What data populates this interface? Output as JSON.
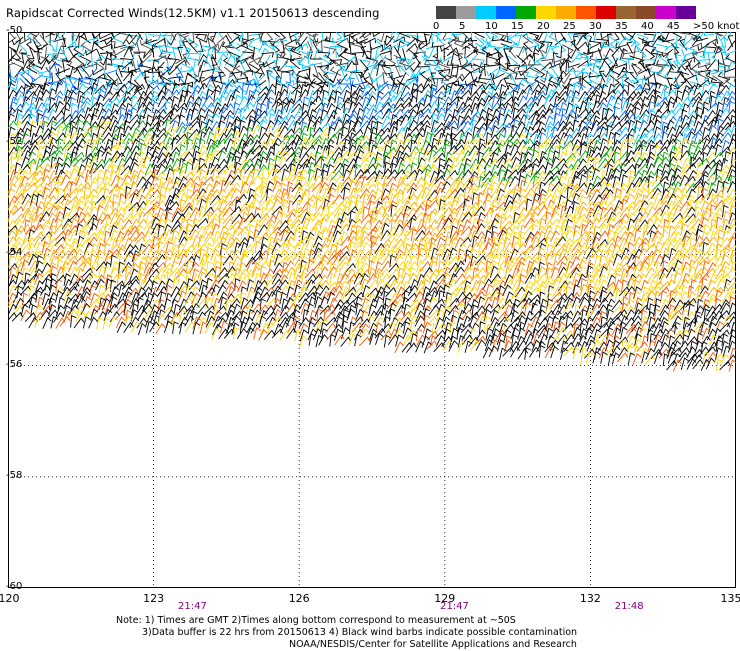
{
  "title": "Rapidscat Corrected Winds(12.5KM) v1.1 20150613 descending",
  "legend": {
    "labels": [
      "0",
      "5",
      "10",
      "15",
      "20",
      "25",
      "30",
      "35",
      "40",
      "45",
      ">50 knots"
    ],
    "colors": [
      "#444444",
      "#9c9c9c",
      "#00ccff",
      "#0066ff",
      "#00aa00",
      "#ffd700",
      "#ffaa00",
      "#ff5500",
      "#dd0000",
      "#996633",
      "#8a4a2a",
      "#cc00cc",
      "#660099"
    ]
  },
  "map": {
    "lon_range": [
      120,
      135
    ],
    "lat_range": [
      -50,
      -60
    ],
    "lon_labels": [
      "120",
      "123",
      "126",
      "129",
      "132",
      "135"
    ],
    "lat_labels": [
      "-50",
      "-52",
      "-54",
      "-56",
      "-58",
      "-60"
    ],
    "time_labels": [
      "21:47",
      "21:47",
      "21:48"
    ],
    "time_lons": [
      123.8,
      129.2,
      132.8
    ]
  },
  "notes": {
    "line1": "Note: 1) Times are GMT 2)Times along bottom correspond to measurement at ~50S",
    "line2": "3)Data buffer is 22 hrs from 20150613 4) Black wind barbs indicate possible contamination",
    "line3": "NOAA/NESDIS/Center for Satellite Applications and Research"
  }
}
